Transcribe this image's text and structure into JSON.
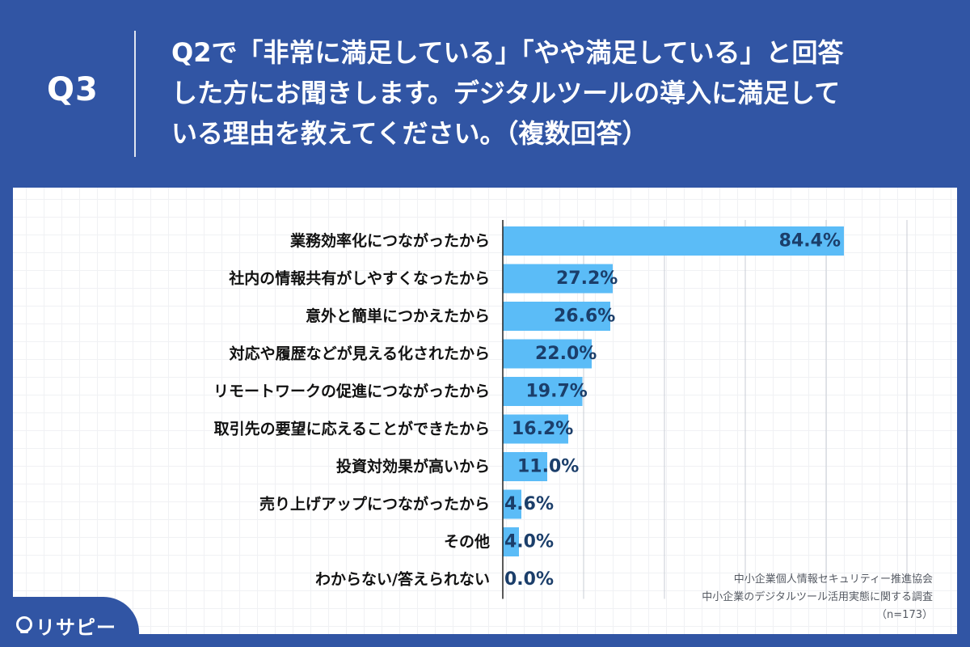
{
  "header": {
    "q_label": "Q3",
    "question_lines": [
      "Q2で「非常に満足している」「やや満足している」と回答",
      "した方にお聞きします。デジタルツールの導入に満足して",
      "いる理由を教えてください。（複数回答）"
    ]
  },
  "chart_data": {
    "type": "bar",
    "orientation": "horizontal",
    "categories": [
      "業務効率化につながったから",
      "社内の情報共有がしやすくなったから",
      "意外と簡単につかえたから",
      "対応や履歴などが見える化されたから",
      "リモートワークの促進につながったから",
      "取引先の要望に応えることができたから",
      "投資対効果が高いから",
      "売り上げアップにつながったから",
      "その他",
      "わからない/答えられない"
    ],
    "values": [
      84.4,
      27.2,
      26.6,
      22.0,
      19.7,
      16.2,
      11.0,
      4.6,
      4.0,
      0.0
    ],
    "value_labels": [
      "84.4%",
      "27.2%",
      "26.6%",
      "22.0%",
      "19.7%",
      "16.2%",
      "11.0%",
      "4.6%",
      "4.0%",
      "0.0%"
    ],
    "xlim": [
      0,
      100
    ],
    "grid": true,
    "bar_color": "#5bbcf7",
    "label_color": "#1b3e6a"
  },
  "footnote": {
    "org": "中小企業個人情報セキュリティー推進協会",
    "survey": "中小企業のデジタルツール活用実態に関する調査",
    "n": "（n=173）"
  },
  "logo": {
    "text": "リサピー",
    "icon": "pin-icon"
  }
}
